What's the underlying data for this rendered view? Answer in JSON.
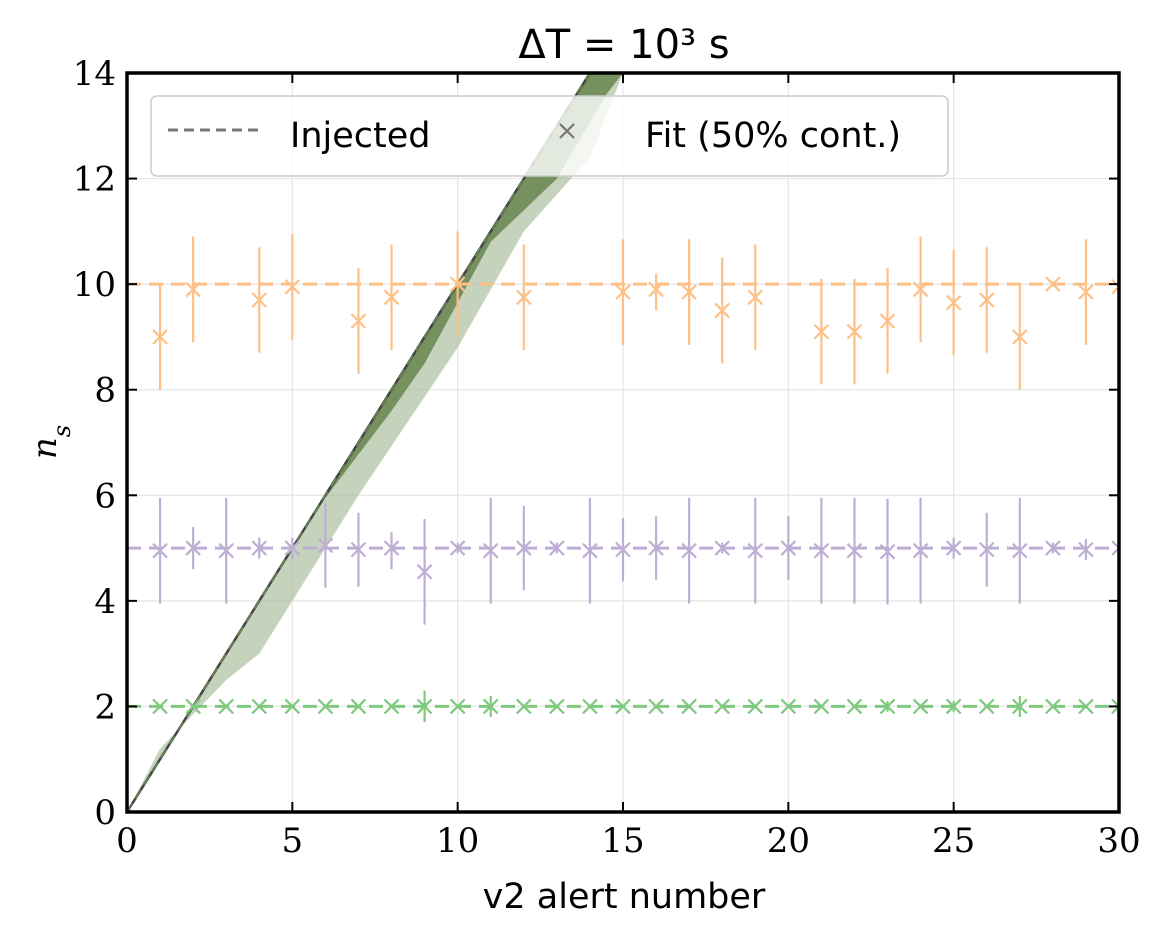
{
  "chart_data": {
    "type": "scatter",
    "title": "ΔT = 10³ s",
    "xlabel": "v2 alert number",
    "ylabel": "n_s",
    "xlim": [
      0,
      30
    ],
    "ylim": [
      0,
      14
    ],
    "xticks": [
      0,
      5,
      10,
      15,
      20,
      25,
      30
    ],
    "yticks": [
      0,
      2,
      4,
      6,
      8,
      10,
      12,
      14
    ],
    "grid": true,
    "legend": {
      "placement": "top",
      "entries": [
        {
          "label": "Injected",
          "style": "dashed-line",
          "color": "#777777"
        },
        {
          "label": "Fit (50% cont.)",
          "style": "x-marker",
          "color": "#777777"
        }
      ]
    },
    "series": [
      {
        "injected": 10,
        "color": "#fdc086",
        "x": [
          1,
          2,
          4,
          5,
          7,
          8,
          10,
          12,
          15,
          16,
          17,
          18,
          19,
          21,
          22,
          23,
          24,
          25,
          26,
          27,
          28,
          29,
          30
        ],
        "y": [
          9.0,
          9.9,
          9.7,
          9.95,
          9.3,
          9.75,
          10.0,
          9.75,
          9.85,
          9.9,
          9.85,
          9.5,
          9.75,
          9.1,
          9.1,
          9.3,
          9.9,
          9.65,
          9.7,
          9.0,
          10.0,
          9.85,
          9.95
        ],
        "err_low": [
          1.0,
          1.0,
          1.0,
          1.0,
          1.0,
          1.0,
          1.0,
          1.0,
          1.0,
          0.4,
          1.0,
          1.0,
          1.0,
          1.0,
          1.0,
          1.0,
          1.0,
          1.0,
          1.0,
          1.0,
          0.05,
          1.0,
          1.0
        ],
        "err_high": [
          1.0,
          1.0,
          1.0,
          1.0,
          1.0,
          1.0,
          1.0,
          1.0,
          1.0,
          0.3,
          1.0,
          1.0,
          1.0,
          1.0,
          1.0,
          1.0,
          1.0,
          1.0,
          1.0,
          1.0,
          0.05,
          1.0,
          1.0
        ]
      },
      {
        "injected": 5,
        "color": "#beaed4",
        "x": [
          1,
          2,
          3,
          4,
          5,
          6,
          7,
          8,
          9,
          10,
          11,
          12,
          13,
          14,
          15,
          16,
          17,
          18,
          19,
          20,
          21,
          22,
          23,
          24,
          25,
          26,
          27,
          28,
          29,
          30
        ],
        "y": [
          4.95,
          5.0,
          4.95,
          5.0,
          5.0,
          5.05,
          4.97,
          5.0,
          4.55,
          5.0,
          4.95,
          5.0,
          5.0,
          4.95,
          4.97,
          5.0,
          4.95,
          5.0,
          4.95,
          5.0,
          4.95,
          4.95,
          4.93,
          4.95,
          5.0,
          4.97,
          4.95,
          5.0,
          4.97,
          5.0
        ],
        "err_low": [
          1.0,
          0.4,
          1.0,
          0.2,
          0.2,
          0.8,
          0.7,
          0.4,
          1.0,
          0.1,
          1.0,
          0.8,
          0.1,
          1.0,
          0.6,
          0.6,
          1.0,
          0.1,
          1.0,
          0.6,
          1.0,
          1.0,
          1.0,
          1.0,
          0.2,
          0.7,
          1.0,
          0.1,
          0.2,
          0.1
        ],
        "err_high": [
          1.0,
          0.4,
          1.0,
          0.2,
          0.2,
          0.8,
          0.7,
          0.3,
          1.0,
          0.1,
          1.0,
          0.8,
          0.1,
          1.0,
          0.6,
          0.6,
          1.0,
          0.1,
          1.0,
          0.6,
          1.0,
          1.0,
          1.0,
          1.0,
          0.2,
          0.7,
          1.0,
          0.1,
          0.2,
          0.1
        ]
      },
      {
        "injected": 2,
        "color": "#7fc97f",
        "x": [
          1,
          2,
          3,
          4,
          5,
          6,
          7,
          8,
          9,
          10,
          11,
          12,
          13,
          14,
          15,
          16,
          17,
          18,
          19,
          20,
          21,
          22,
          23,
          24,
          25,
          26,
          27,
          28,
          29,
          30
        ],
        "y": [
          2,
          2,
          2,
          2,
          2,
          2,
          2,
          2,
          2,
          2,
          2,
          2,
          2,
          2,
          2,
          2,
          2,
          2,
          2,
          2,
          2,
          2,
          2,
          2,
          2,
          2,
          2,
          2,
          2,
          2
        ],
        "err_low": [
          0,
          0,
          0,
          0,
          0,
          0,
          0,
          0,
          0.3,
          0,
          0.2,
          0,
          0,
          0,
          0,
          0,
          0,
          0,
          0,
          0,
          0,
          0,
          0.1,
          0,
          0.1,
          0,
          0.2,
          0,
          0,
          0
        ],
        "err_high": [
          0,
          0,
          0,
          0,
          0,
          0,
          0,
          0,
          0.3,
          0,
          0.2,
          0,
          0,
          0,
          0,
          0,
          0,
          0,
          0,
          0,
          0,
          0,
          0.1,
          0,
          0.1,
          0,
          0.2,
          0,
          0,
          0
        ]
      }
    ],
    "bands": [
      {
        "color": "#a8bc98",
        "upper": [
          [
            0,
            0
          ],
          [
            2,
            2
          ],
          [
            5,
            5
          ],
          [
            10,
            10
          ],
          [
            14.2,
            14.2
          ]
        ],
        "lower": [
          [
            0,
            0
          ],
          [
            1,
            1.2
          ],
          [
            3,
            2.5
          ],
          [
            4,
            3.0
          ],
          [
            7,
            6.0
          ],
          [
            10,
            8.8
          ],
          [
            12,
            11.0
          ],
          [
            14,
            12.4
          ],
          [
            15,
            14
          ]
        ]
      },
      {
        "color": "#6b8a54",
        "upper": [
          [
            6,
            6.05
          ],
          [
            9,
            9.0
          ],
          [
            10,
            10.0
          ],
          [
            12,
            12.0
          ],
          [
            14.2,
            14.2
          ]
        ],
        "lower": [
          [
            6,
            5.95
          ],
          [
            8,
            7.6
          ],
          [
            9,
            8.5
          ],
          [
            11,
            10.8
          ],
          [
            13,
            12.0
          ],
          [
            14.5,
            13.6
          ],
          [
            15,
            14
          ]
        ]
      }
    ],
    "injected_diagonal": {
      "color": "#444444",
      "from": [
        0,
        0
      ],
      "to": [
        14.2,
        14.2
      ]
    }
  }
}
